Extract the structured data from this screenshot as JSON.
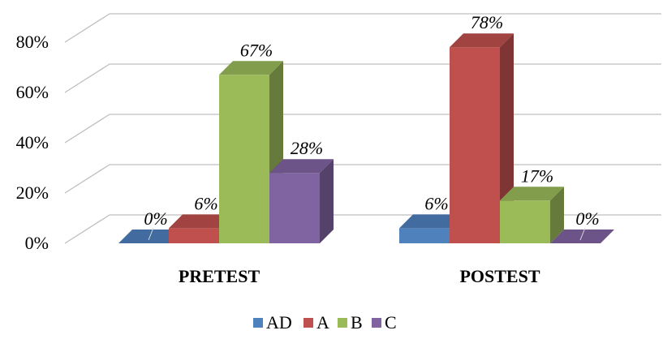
{
  "chart_data": {
    "type": "bar",
    "style": "3d-clustered",
    "categories": [
      "PRETEST",
      "POSTEST"
    ],
    "series": [
      {
        "name": "AD",
        "values": [
          0,
          6
        ],
        "labels": [
          "0%",
          "6%"
        ],
        "color": "#4F81BD"
      },
      {
        "name": "A",
        "values": [
          6,
          78
        ],
        "labels": [
          "6%",
          "78%"
        ],
        "color": "#C0504D"
      },
      {
        "name": "B",
        "values": [
          67,
          17
        ],
        "labels": [
          "67%",
          "17%"
        ],
        "color": "#9BBB59"
      },
      {
        "name": "C",
        "values": [
          28,
          0
        ],
        "labels": [
          "28%",
          "0%"
        ],
        "color": "#8064A2"
      }
    ],
    "ylim": [
      0,
      80
    ],
    "yticks": [
      "0%",
      "20%",
      "40%",
      "60%",
      "80%"
    ],
    "grid": true,
    "legend": "bottom"
  }
}
